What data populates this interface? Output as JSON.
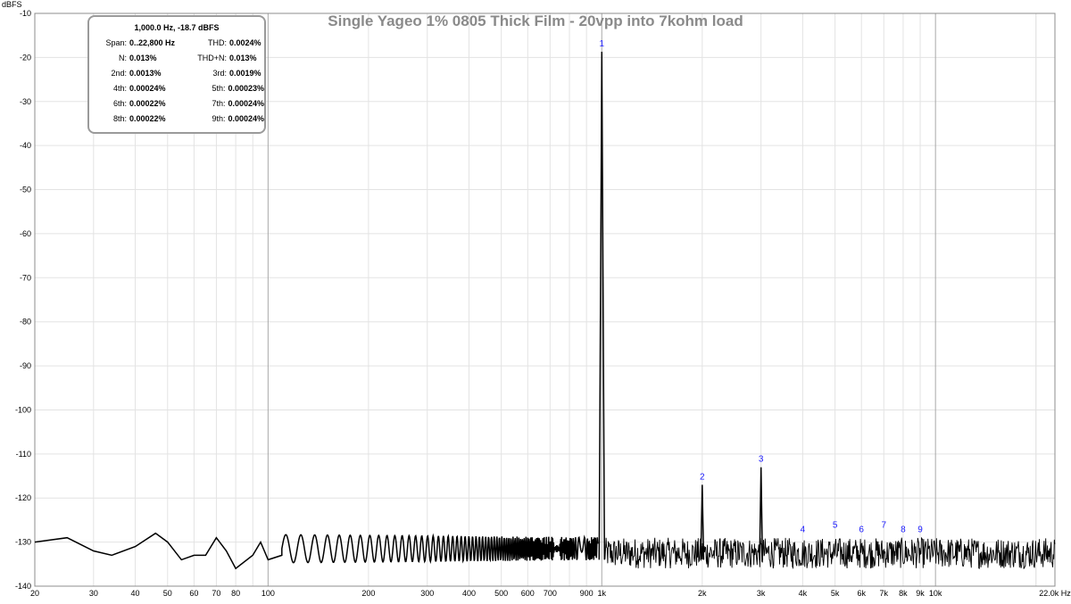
{
  "chart_data": {
    "type": "line",
    "title": "Single Yageo 1% 0805 Thick Film - 20vpp into 7kohm load",
    "ylabel": "dBFS",
    "xlabel": "Hz",
    "x_scale": "log",
    "xlim": [
      20,
      22800
    ],
    "ylim": [
      -140,
      -10
    ],
    "y_ticks": [
      "-10",
      "-20",
      "-30",
      "-40",
      "-50",
      "-60",
      "-70",
      "-80",
      "-90",
      "-100",
      "-110",
      "-120",
      "-130",
      "-140"
    ],
    "x_ticks": [
      {
        "v": 20,
        "t": "20"
      },
      {
        "v": 30,
        "t": "30"
      },
      {
        "v": 40,
        "t": "40"
      },
      {
        "v": 50,
        "t": "50"
      },
      {
        "v": 60,
        "t": "60"
      },
      {
        "v": 70,
        "t": "70"
      },
      {
        "v": 80,
        "t": "80"
      },
      {
        "v": 100,
        "t": "100"
      },
      {
        "v": 200,
        "t": "200"
      },
      {
        "v": 300,
        "t": "300"
      },
      {
        "v": 400,
        "t": "400"
      },
      {
        "v": 500,
        "t": "500"
      },
      {
        "v": 600,
        "t": "600"
      },
      {
        "v": 700,
        "t": "700"
      },
      {
        "v": 900,
        "t": "900"
      },
      {
        "v": 1000,
        "t": "1k"
      },
      {
        "v": 2000,
        "t": "2k"
      },
      {
        "v": 3000,
        "t": "3k"
      },
      {
        "v": 4000,
        "t": "4k"
      },
      {
        "v": 5000,
        "t": "5k"
      },
      {
        "v": 6000,
        "t": "6k"
      },
      {
        "v": 7000,
        "t": "7k"
      },
      {
        "v": 8000,
        "t": "8k"
      },
      {
        "v": 9000,
        "t": "9k"
      },
      {
        "v": 10000,
        "t": "10k"
      },
      {
        "v": 22000,
        "t": "22.0k Hz"
      }
    ],
    "grid": true,
    "series_color": "#000000",
    "grid_minor_color": "#e3e3e3",
    "grid_major_color": "#a8a8a8",
    "harmonic_label_color": "#1a1aff",
    "noise_floor_dbfs": -131,
    "series": [
      {
        "values_note_points": [
          [
            20,
            -130
          ],
          [
            25,
            -129
          ],
          [
            30,
            -132
          ],
          [
            34,
            -133
          ],
          [
            40,
            -131
          ],
          [
            46,
            -128
          ],
          [
            50,
            -130
          ],
          [
            55,
            -134
          ],
          [
            60,
            -133
          ],
          [
            65,
            -133
          ],
          [
            70,
            -129
          ],
          [
            75,
            -132
          ],
          [
            80,
            -136
          ],
          [
            90,
            -133
          ],
          [
            95,
            -130
          ],
          [
            100,
            -134
          ],
          [
            110,
            -133
          ],
          [
            1000,
            -18.7
          ],
          [
            2000,
            -117
          ],
          [
            3000,
            -113
          ]
        ]
      }
    ],
    "harmonics": [
      {
        "label": "1",
        "freq": 1000,
        "dbfs": -18.7
      },
      {
        "label": "2",
        "freq": 2000,
        "dbfs": -117
      },
      {
        "label": "3",
        "freq": 3000,
        "dbfs": -113
      },
      {
        "label": "4",
        "freq": 4000,
        "dbfs": -129
      },
      {
        "label": "5",
        "freq": 5000,
        "dbfs": -128
      },
      {
        "label": "6",
        "freq": 6000,
        "dbfs": -129
      },
      {
        "label": "7",
        "freq": 7000,
        "dbfs": -128
      },
      {
        "label": "8",
        "freq": 8000,
        "dbfs": -129
      },
      {
        "label": "9",
        "freq": 9000,
        "dbfs": -129
      }
    ]
  },
  "stats": {
    "header": "1,000.0 Hz, -18.7 dBFS",
    "rows": [
      [
        {
          "k": "Span:",
          "v": "0..22,800 Hz"
        },
        {
          "k": "THD:",
          "v": "0.0024%"
        }
      ],
      [
        {
          "k": "N:",
          "v": "0.013%"
        },
        {
          "k": "THD+N:",
          "v": "0.013%"
        }
      ],
      [
        {
          "k": "2nd:",
          "v": "0.0013%"
        },
        {
          "k": "3rd:",
          "v": "0.0019%"
        }
      ],
      [
        {
          "k": "4th:",
          "v": "0.00024%"
        },
        {
          "k": "5th:",
          "v": "0.00023%"
        }
      ],
      [
        {
          "k": "6th:",
          "v": "0.00022%"
        },
        {
          "k": "7th:",
          "v": "0.00024%"
        }
      ],
      [
        {
          "k": "8th:",
          "v": "0.00022%"
        },
        {
          "k": "9th:",
          "v": "0.00024%"
        }
      ]
    ]
  }
}
